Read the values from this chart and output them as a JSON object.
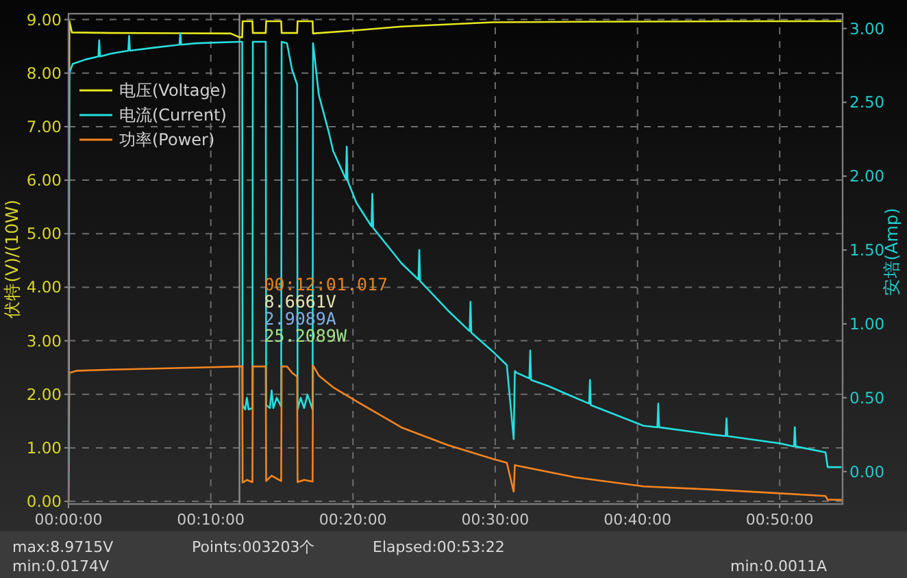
{
  "chart_data": {
    "type": "line",
    "ylabel": "伏特(V)/(10W)",
    "y2label": "安培(Amp)",
    "xlim": [
      0,
      0.907
    ],
    "xticks": [
      {
        "value": 0,
        "label": "00:00:00"
      },
      {
        "value": 0.1667,
        "label": "00:10:00"
      },
      {
        "value": 0.3333,
        "label": "00:20:00"
      },
      {
        "value": 0.5,
        "label": "00:30:00"
      },
      {
        "value": 0.6667,
        "label": "00:40:00"
      },
      {
        "value": 0.8333,
        "label": "00:50:00"
      }
    ],
    "ylim": [
      -0.05,
      9.11
    ],
    "yticks": [
      {
        "value": 0,
        "label": "0.00"
      },
      {
        "value": 1,
        "label": "1.00"
      },
      {
        "value": 2,
        "label": "2.00"
      },
      {
        "value": 3,
        "label": "3.00"
      },
      {
        "value": 4,
        "label": "4.00"
      },
      {
        "value": 5,
        "label": "5.00"
      },
      {
        "value": 6,
        "label": "6.00"
      },
      {
        "value": 7,
        "label": "7.00"
      },
      {
        "value": 8,
        "label": "8.00"
      },
      {
        "value": 9,
        "label": "9.00"
      }
    ],
    "y2lim": [
      -0.22,
      3.1
    ],
    "y2ticks": [
      {
        "value": 0,
        "label": "0.00"
      },
      {
        "value": 0.5,
        "label": "0.50"
      },
      {
        "value": 1,
        "label": "1.00"
      },
      {
        "value": 1.5,
        "label": "1.50"
      },
      {
        "value": 2,
        "label": "2.00"
      },
      {
        "value": 2.5,
        "label": "2.50"
      },
      {
        "value": 3,
        "label": "3.00"
      }
    ],
    "grid": true,
    "legend": "top left",
    "series": [
      {
        "name": "电压(Voltage)",
        "color": "#e6e61e",
        "x": [
          0,
          0.001,
          0.004,
          0.05,
          0.19,
          0.2003,
          0.2035,
          0.204,
          0.2155,
          0.216,
          0.2311,
          0.2316,
          0.2492,
          0.2497,
          0.2679,
          0.2684,
          0.286,
          0.2865,
          0.3373,
          0.3902,
          0.4976,
          0.6,
          0.8,
          0.905
        ],
        "values": [
          0.02,
          8.97,
          8.76,
          8.75,
          8.74,
          8.67,
          8.67,
          8.97,
          8.97,
          8.75,
          8.75,
          8.97,
          8.97,
          8.75,
          8.75,
          8.97,
          8.97,
          8.74,
          8.8,
          8.87,
          8.95,
          8.96,
          8.97,
          8.97
        ]
      },
      {
        "name": "电流(Current)",
        "color": "#26dede",
        "axis": "y2",
        "x": [
          0,
          0.001,
          0.005,
          0.02,
          0.035,
          0.036,
          0.037,
          0.05,
          0.07,
          0.071,
          0.072,
          0.1,
          0.13,
          0.131,
          0.132,
          0.15,
          0.2003,
          0.2035,
          0.204,
          0.207,
          0.209,
          0.211,
          0.2155,
          0.216,
          0.2311,
          0.2316,
          0.236,
          0.238,
          0.24,
          0.244,
          0.2492,
          0.2497,
          0.256,
          0.262,
          0.2679,
          0.2684,
          0.272,
          0.276,
          0.28,
          0.286,
          0.2865,
          0.2885,
          0.2933,
          0.3053,
          0.3101,
          0.325,
          0.326,
          0.327,
          0.3373,
          0.355,
          0.356,
          0.357,
          0.3902,
          0.41,
          0.411,
          0.412,
          0.4447,
          0.47,
          0.471,
          0.472,
          0.4976,
          0.5136,
          0.5216,
          0.523,
          0.5248,
          0.54,
          0.541,
          0.542,
          0.5617,
          0.5938,
          0.61,
          0.611,
          0.612,
          0.6739,
          0.69,
          0.691,
          0.692,
          0.7548,
          0.77,
          0.771,
          0.772,
          0.834,
          0.85,
          0.851,
          0.852,
          0.887,
          0.8895,
          0.905
        ],
        "values": [
          0,
          2.7,
          2.76,
          2.79,
          2.81,
          2.92,
          2.81,
          2.83,
          2.85,
          2.95,
          2.85,
          2.87,
          2.89,
          2.97,
          2.89,
          2.9,
          2.91,
          2.91,
          0.45,
          0.42,
          0.5,
          0.42,
          0.43,
          2.91,
          2.91,
          0.45,
          0.43,
          0.55,
          0.43,
          0.5,
          0.44,
          2.91,
          2.9,
          2.72,
          2.62,
          0.42,
          0.5,
          0.43,
          0.52,
          0.42,
          2.9,
          2.8,
          2.55,
          2.29,
          2.17,
          1.98,
          2.2,
          1.97,
          1.82,
          1.66,
          1.88,
          1.65,
          1.41,
          1.3,
          1.5,
          1.29,
          1.09,
          0.95,
          1.15,
          0.94,
          0.81,
          0.72,
          0.22,
          0.68,
          0.67,
          0.63,
          0.82,
          0.62,
          0.58,
          0.5,
          0.46,
          0.62,
          0.45,
          0.31,
          0.3,
          0.46,
          0.3,
          0.25,
          0.24,
          0.36,
          0.24,
          0.19,
          0.17,
          0.3,
          0.17,
          0.13,
          0.03,
          0.03
        ]
      },
      {
        "name": "功率(Power)",
        "color": "#f5841f",
        "x": [
          0,
          0.001,
          0.01,
          0.05,
          0.1,
          0.15,
          0.2003,
          0.2035,
          0.204,
          0.209,
          0.2155,
          0.216,
          0.2311,
          0.2316,
          0.238,
          0.2492,
          0.2497,
          0.256,
          0.262,
          0.2679,
          0.2684,
          0.276,
          0.286,
          0.2865,
          0.2933,
          0.3101,
          0.3373,
          0.3902,
          0.4447,
          0.4976,
          0.5136,
          0.5216,
          0.523,
          0.5248,
          0.5938,
          0.6739,
          0.7548,
          0.834,
          0.887,
          0.8895,
          0.905
        ],
        "values": [
          0,
          2.4,
          2.44,
          2.46,
          2.48,
          2.5,
          2.52,
          2.52,
          0.35,
          0.4,
          0.36,
          2.52,
          2.52,
          0.38,
          0.48,
          0.38,
          2.52,
          2.52,
          2.4,
          2.33,
          0.36,
          0.4,
          0.37,
          2.54,
          2.35,
          2.13,
          1.87,
          1.38,
          1.05,
          0.79,
          0.72,
          0.18,
          0.68,
          0.67,
          0.45,
          0.28,
          0.22,
          0.15,
          0.1,
          0.03,
          0.03
        ]
      }
    ],
    "ref_lines": [
      {
        "axis": "x",
        "value": 0.2003,
        "color": "#8c8c8c"
      }
    ],
    "annotations": [
      "00:12:01.017",
      "8.6661V",
      "2.9089A",
      "25.2089W",
      "max:8.9715V",
      "Points:003203个",
      "Elapsed:00:53:22",
      "min:0.0174V",
      "min:0.0011A"
    ]
  }
}
